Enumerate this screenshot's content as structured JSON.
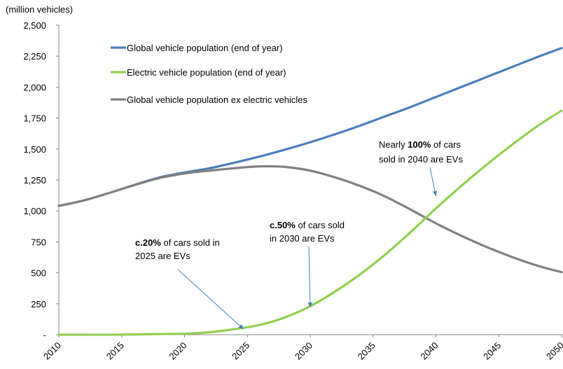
{
  "chart_data": {
    "type": "line",
    "unit_label": "(million vehicles)",
    "xlim": [
      2010,
      2050
    ],
    "ylim": [
      0,
      2500
    ],
    "x_ticks": [
      2010,
      2015,
      2020,
      2025,
      2030,
      2035,
      2040,
      2045,
      2050
    ],
    "x_tick_labels": [
      "2010",
      "2015",
      "2020",
      "2025",
      "2030",
      "2035",
      "2040",
      "2045",
      "2050"
    ],
    "y_ticks": [
      0,
      250,
      500,
      750,
      1000,
      1250,
      1500,
      1750,
      2000,
      2250,
      2500
    ],
    "y_tick_labels": [
      "-",
      "250",
      "500",
      "750",
      "1,000",
      "1,250",
      "1,500",
      "1,750",
      "2,000",
      "2,250",
      "2,500"
    ],
    "grid": false,
    "legend_position": "top-left",
    "x": [
      2010,
      2012,
      2014,
      2016,
      2018,
      2020,
      2022,
      2024,
      2026,
      2028,
      2030,
      2032,
      2034,
      2036,
      2038,
      2040,
      2042,
      2044,
      2046,
      2048,
      2050
    ],
    "series": [
      {
        "name": "Global vehicle population (end of year)",
        "color": "#4a7ebb",
        "values": [
          1040,
          1085,
          1145,
          1210,
          1270,
          1310,
          1345,
          1390,
          1440,
          1495,
          1555,
          1620,
          1690,
          1765,
          1840,
          1920,
          2000,
          2080,
          2160,
          2240,
          2315
        ]
      },
      {
        "name": "Electric vehicle population (end of year)",
        "color": "#92d050",
        "values": [
          0,
          0,
          0,
          2,
          5,
          8,
          20,
          45,
          80,
          140,
          230,
          350,
          490,
          650,
          830,
          1020,
          1200,
          1370,
          1530,
          1680,
          1810
        ]
      },
      {
        "name": "Global vehicle population ex electric vehicles",
        "color": "#808080",
        "values": [
          1040,
          1085,
          1145,
          1208,
          1265,
          1302,
          1325,
          1345,
          1360,
          1355,
          1325,
          1270,
          1200,
          1115,
          1010,
          900,
          800,
          710,
          630,
          560,
          505
        ]
      }
    ],
    "annotations": [
      {
        "bold": "c.20%",
        "text_after_bold": " of cars sold in",
        "line2": "2025 are EVs",
        "arrow_to_x": 2024.7,
        "arrow_to_y": 45
      },
      {
        "bold": "c.50%",
        "text_after_bold": " of cars sold",
        "line2": "in 2030 are EVs",
        "arrow_to_x": 2030,
        "arrow_to_y": 220
      },
      {
        "prefix": "Nearly ",
        "bold": "100%",
        "text_after_bold": " of cars",
        "line2": "sold in 2040 are EVs",
        "arrow_to_x": 2040,
        "arrow_to_y": 1120
      }
    ]
  }
}
